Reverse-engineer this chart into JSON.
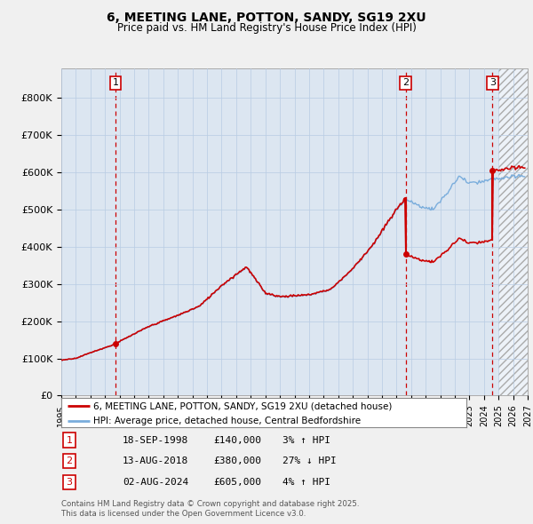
{
  "title": "6, MEETING LANE, POTTON, SANDY, SG19 2XU",
  "subtitle": "Price paid vs. HM Land Registry's House Price Index (HPI)",
  "transactions": [
    {
      "num": 1,
      "date_str": "18-SEP-1998",
      "price": 140000,
      "year": 1998.72,
      "hpi_pct": "3% ↑ HPI"
    },
    {
      "num": 2,
      "date_str": "13-AUG-2018",
      "price": 380000,
      "year": 2018.62,
      "hpi_pct": "27% ↓ HPI"
    },
    {
      "num": 3,
      "date_str": "02-AUG-2024",
      "price": 605000,
      "year": 2024.59,
      "hpi_pct": "4% ↑ HPI"
    }
  ],
  "hpi_label": "HPI: Average price, detached house, Central Bedfordshire",
  "property_label": "6, MEETING LANE, POTTON, SANDY, SG19 2XU (detached house)",
  "footnote": "Contains HM Land Registry data © Crown copyright and database right 2025.\nThis data is licensed under the Open Government Licence v3.0.",
  "xmin": 1995,
  "xmax": 2027,
  "ymin": 0,
  "ymax": 880000,
  "yticks": [
    0,
    100000,
    200000,
    300000,
    400000,
    500000,
    600000,
    700000,
    800000
  ],
  "ytick_labels": [
    "£0",
    "£100K",
    "£200K",
    "£300K",
    "£400K",
    "£500K",
    "£600K",
    "£700K",
    "£800K"
  ],
  "grid_color": "#b8cce4",
  "hpi_line_color": "#7aaddc",
  "price_line_color": "#cc0000",
  "vline_color": "#cc0000",
  "bg_color": "#f0f0f0",
  "plot_bg_color": "#dce6f1",
  "legend_box_color": "#ffffff",
  "label_box_color": "#cc0000",
  "hatch_area_start": 2025
}
